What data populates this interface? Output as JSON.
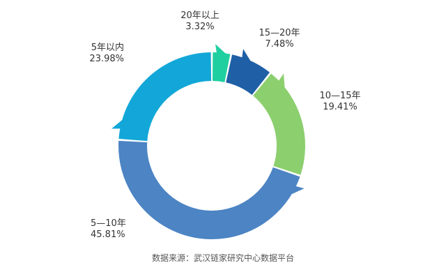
{
  "chart_data": {
    "type": "pie",
    "donut": true,
    "slices": [
      {
        "name": "20年以上",
        "value": 3.32,
        "label": "3.32%",
        "color": "#1fcf9f"
      },
      {
        "name": "15—20年",
        "value": 7.48,
        "label": "7.48%",
        "color": "#1f5fa6"
      },
      {
        "name": "10—15年",
        "value": 19.41,
        "label": "19.41%",
        "color": "#8ccf6e"
      },
      {
        "name": "5—10年",
        "value": 45.81,
        "label": "45.81%",
        "color": "#4c84c4"
      },
      {
        "name": "5年以内",
        "value": 23.98,
        "label": "23.98%",
        "color": "#12a7d8"
      }
    ]
  },
  "source": "数据来源：武汉链家研究中心数据平台"
}
